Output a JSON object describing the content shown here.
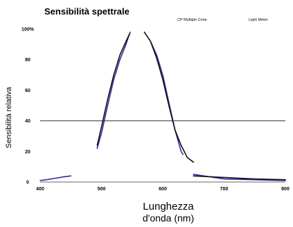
{
  "chart_data": {
    "type": "line",
    "title": "Sensibilità spettrale",
    "xlabel_line1": "Lunghezza",
    "xlabel_line2": "d'onda (nm)",
    "ylabel": "Sensibilità relativa",
    "xlim": [
      400,
      800
    ],
    "ylim": [
      0,
      100
    ],
    "x_ticks": [
      400,
      500,
      600,
      700,
      800
    ],
    "x_tick_labels": [
      "400",
      "500",
      "600",
      "700",
      "800"
    ],
    "y_ticks": [
      0,
      20,
      40,
      60,
      80,
      100
    ],
    "y_tick_labels": [
      "0",
      "20",
      "40",
      "60",
      "80",
      "100%"
    ],
    "grid": false,
    "reference_line_y": 40,
    "legend_position": "top-right",
    "colors": {
      "blue": "#2c2ca8",
      "black": "#111111",
      "axis": "#333333"
    },
    "series": [
      {
        "name": "CP Multiple Cone",
        "color": "#2c2ca8",
        "segments": [
          [
            [
              400,
              1
            ],
            [
              410,
              1.5
            ],
            [
              425,
              2.5
            ],
            [
              440,
              3.5
            ],
            [
              450,
              4
            ]
          ],
          [
            [
              493,
              22
            ],
            [
              500,
              32
            ],
            [
              510,
              50
            ],
            [
              520,
              67
            ],
            [
              530,
              80
            ],
            [
              540,
              90
            ],
            [
              545,
              96
            ],
            [
              547,
              98
            ]
          ],
          [
            [
              580,
              92
            ],
            [
              590,
              83
            ],
            [
              600,
              70
            ],
            [
              610,
              52
            ],
            [
              620,
              34
            ],
            [
              630,
              20
            ],
            [
              633,
              18
            ]
          ],
          [
            [
              650,
              5
            ],
            [
              700,
              2
            ],
            [
              750,
              1.5
            ],
            [
              800,
              1
            ]
          ]
        ]
      },
      {
        "name": "Light Meter",
        "color": "#111111",
        "segments": [
          [
            [
              493,
              24
            ],
            [
              500,
              36
            ],
            [
              510,
              54
            ],
            [
              520,
              70
            ],
            [
              530,
              83
            ],
            [
              540,
              92
            ],
            [
              546,
              97
            ]
          ],
          [
            [
              570,
              98
            ],
            [
              580,
              92
            ],
            [
              590,
              81
            ],
            [
              600,
              67
            ],
            [
              610,
              50
            ],
            [
              620,
              34
            ],
            [
              630,
              24
            ],
            [
              640,
              16
            ],
            [
              650,
              13
            ]
          ],
          [
            [
              650,
              4
            ],
            [
              700,
              3
            ],
            [
              750,
              2
            ],
            [
              800,
              1.5
            ]
          ]
        ]
      }
    ]
  }
}
